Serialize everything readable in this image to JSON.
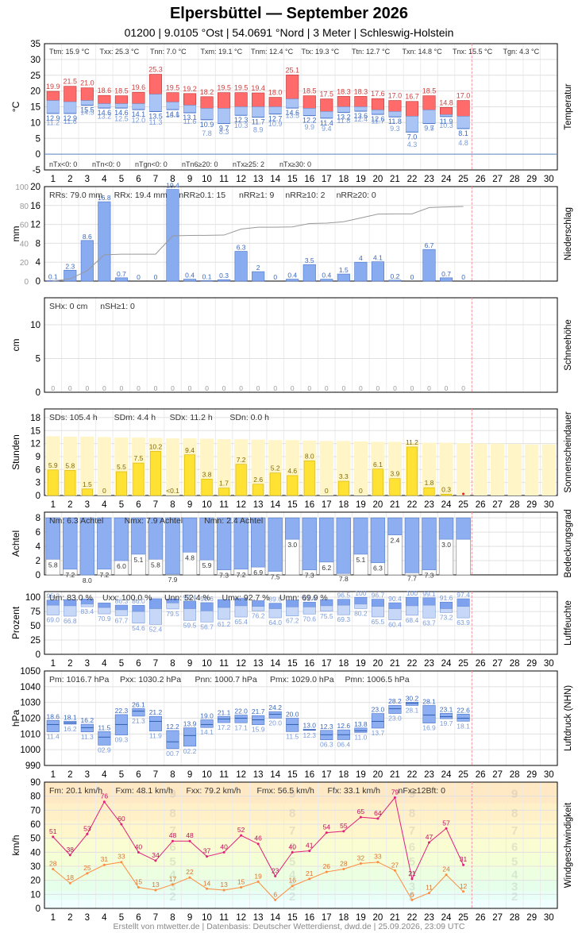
{
  "header": {
    "title": "Elpersbüttel  —  September 2026",
    "subtitle": "01200  |  9.0105 °Ost  |  54.0691 °Nord  |  3 Meter  |  Schleswig-Holstein"
  },
  "footer": "Erstellt von mtwetter.de | Datenbasis: Deutscher Wetterdienst, dwd.de | 25.09.2026, 23:09 UTC",
  "days": [
    1,
    2,
    3,
    4,
    5,
    6,
    7,
    8,
    9,
    10,
    11,
    12,
    13,
    14,
    15,
    16,
    17,
    18,
    19,
    20,
    21,
    22,
    23,
    24,
    25,
    26,
    27,
    28,
    29,
    30
  ],
  "colors": {
    "tmax": "#ff6a6a",
    "tmean": "#a9c4f5",
    "tmin_line": "#6a94e6",
    "precip": "#89abf0",
    "sun": "#ffe233",
    "sun_bg": "#fff5c7",
    "cloud": "#8eaef2",
    "pressure": "#8eaef2",
    "wind_max": "#e0207a",
    "wind_avg": "#ff8c40",
    "grid": "#dddddd",
    "today_line": "#ff9aa0"
  },
  "chart_data": [
    {
      "type": "bar",
      "name": "Temperatur",
      "ylabel": "°C",
      "panel_label": "Temperatur",
      "ylim": [
        -5,
        35
      ],
      "yticks": [
        -5,
        0,
        5,
        10,
        15,
        20,
        25,
        30,
        35
      ],
      "tmax": [
        19.9,
        21.5,
        21.0,
        18.6,
        18.5,
        19.6,
        25.3,
        19.5,
        19.2,
        18.2,
        19.5,
        19.5,
        19.4,
        18.0,
        25.1,
        18.5,
        17.5,
        18.3,
        18.3,
        17.6,
        17.0,
        16.7,
        18.5,
        14.8,
        17.0
      ],
      "tmean": [
        17.0,
        16.6,
        17.0,
        16.0,
        16.0,
        16.0,
        19.0,
        16.5,
        15.5,
        14.5,
        14.5,
        15.0,
        15.0,
        15.0,
        17.5,
        14.5,
        13.5,
        15.0,
        15.0,
        14.0,
        13.5,
        12.0,
        14.0,
        12.5,
        12.0
      ],
      "tmin": [
        12.9,
        12.9,
        15.5,
        14.6,
        14.6,
        14.1,
        13.5,
        14.1,
        13.1,
        10.9,
        9.7,
        12.3,
        11.7,
        12.7,
        14.6,
        12.2,
        11.4,
        13.2,
        13.6,
        12.6,
        11.8,
        7.0,
        9.7,
        11.9,
        8.1
      ],
      "tmin_ground": [
        11.2,
        11.6,
        14.5,
        13.2,
        12.5,
        12.0,
        11.3,
        13.6,
        11.6,
        7.8,
        8.3,
        10.3,
        8.9,
        10.9,
        13.5,
        9.9,
        9.4,
        11.8,
        12.4,
        11.7,
        9.3,
        4.3,
        9.5,
        10.3,
        4.8
      ],
      "stats_top": [
        "Ttm: 15.9 °C",
        "Txx: 25.3 °C",
        "Tnn: 7.0 °C",
        "Txm: 19.1 °C",
        "Tnm: 12.4 °C",
        "Ttx: 19.3 °C",
        "Ttn: 12.7 °C",
        "Txn: 14.8 °C",
        "Tnx: 15.5 °C",
        "Tgn: 4.3 °C"
      ],
      "stats_bottom": [
        "nTx<0: 0",
        "nTn<0: 0",
        "nTgn<0: 0",
        "nTn6≥20: 0",
        "nTx≥25: 2",
        "nTx≥30: 0"
      ]
    },
    {
      "type": "bar",
      "name": "Niederschlag",
      "ylabel": "mm",
      "panel_label": "Niederschlag",
      "ylim": [
        0,
        20
      ],
      "yticks": [
        0,
        4,
        8,
        12,
        16,
        20
      ],
      "yticks_cum": [
        0,
        20,
        40,
        60,
        80,
        100
      ],
      "values": [
        0.1,
        2.3,
        8.6,
        16.8,
        0.7,
        0,
        0,
        19.4,
        0.4,
        0.1,
        0.3,
        6.3,
        2.0,
        0,
        0.4,
        3.5,
        0.4,
        1.5,
        4.0,
        4.1,
        0.2,
        0,
        6.7,
        0.7,
        0
      ],
      "cumulative": [
        0.1,
        2.4,
        11.0,
        27.8,
        28.5,
        28.5,
        28.5,
        47.9,
        48.3,
        48.4,
        48.7,
        55.0,
        57.0,
        57.0,
        57.4,
        60.9,
        61.3,
        62.8,
        66.8,
        70.9,
        71.1,
        71.1,
        77.8,
        78.5,
        79.0
      ],
      "stats": [
        "RRs: 79.0 mm",
        "RRx: 19.4 mm",
        "nRR≥0.1: 15",
        "nRR≥1: 9",
        "nRR≥10: 2",
        "nRR≥20: 0"
      ]
    },
    {
      "type": "bar",
      "name": "Schneehöhe",
      "ylabel": "cm",
      "panel_label": "Schneehöhe",
      "ylim": [
        0,
        14
      ],
      "yticks": [
        0,
        5,
        10
      ],
      "values": [
        0,
        0,
        0,
        0,
        0,
        0,
        0,
        0,
        0,
        0,
        0,
        0,
        0,
        0,
        0,
        0,
        0,
        0,
        0,
        0,
        0,
        0,
        0,
        0,
        0
      ],
      "stats": [
        "SHx: 0 cm",
        "nSH≥1: 0"
      ]
    },
    {
      "type": "bar",
      "name": "Sonnenscheindauer",
      "ylabel": "Stunden",
      "panel_label": "Sonnenscheindauer",
      "ylim": [
        0,
        20
      ],
      "yticks": [
        0,
        3,
        6,
        9,
        12,
        15,
        18
      ],
      "values": [
        5.9,
        5.8,
        1.5,
        0,
        5.5,
        7.5,
        10.2,
        0,
        9.4,
        3.8,
        1.7,
        7.2,
        2.6,
        5.2,
        4.6,
        8.0,
        0,
        3.3,
        0,
        6.1,
        3.9,
        11.2,
        1.8,
        0.3,
        0
      ],
      "labels": [
        "5.9",
        "5.8",
        "1.5",
        "0",
        "5.5",
        "7.5",
        "10.2",
        "<0.1",
        "9.4",
        "3.8",
        "1.7",
        "7.2",
        "2.6",
        "5.2",
        "4.6",
        "8.0",
        "0",
        "3.3",
        "0",
        "6.1",
        "3.9",
        "11.2",
        "1.8",
        "0.3",
        ""
      ],
      "possible": [
        13.7,
        13.6,
        13.6,
        13.5,
        13.4,
        13.4,
        13.3,
        13.2,
        13.2,
        13.1,
        13.0,
        13.0,
        12.9,
        12.8,
        12.8,
        12.7,
        12.6,
        12.6,
        12.5,
        12.4,
        12.4,
        12.3,
        12.2,
        12.2,
        12.1,
        12.0,
        12.0,
        11.9,
        11.8,
        11.8
      ],
      "stats": [
        "SDs: 105.4 h",
        "SDm: 4.4 h",
        "SDx: 11.2 h",
        "SDn: 0.0 h"
      ]
    },
    {
      "type": "bar",
      "name": "Bedeckungsgrad",
      "ylabel": "Achtel",
      "panel_label": "Bedeckungsgrad",
      "ylim": [
        0,
        8.8
      ],
      "yticks": [
        0,
        2,
        4,
        6,
        8
      ],
      "values": [
        5.8,
        7.2,
        8.0,
        7.2,
        6.0,
        5.1,
        5.8,
        7.9,
        4.8,
        5.9,
        7.3,
        7.2,
        6.9,
        7.5,
        3.0,
        7.3,
        6.2,
        7.8,
        5.1,
        6.3,
        2.4,
        7.7,
        7.3,
        3.0,
        3.0
      ],
      "value_labels": [
        "5.8",
        "7.2",
        "8.0",
        "7.2",
        "6.0",
        "5.1",
        "5.8",
        "7.9",
        "4.8",
        "5.9",
        "7.3",
        "7.2",
        "6.9",
        "7.5",
        "3.0",
        "7.3",
        "6.2",
        "7.8",
        "5.1",
        "6.3",
        "2.4",
        "7.7",
        "7.3",
        "3.0",
        ""
      ],
      "stats": [
        "Nm: 6.3 Achtel",
        "Nmx: 7.9 Achtel",
        "Nmn: 2.4 Achtel"
      ]
    },
    {
      "type": "bar",
      "name": "Luftfeuchte",
      "ylabel": "Prozent",
      "panel_label": "Luftfeuchte",
      "ylim": [
        0,
        110
      ],
      "yticks": [
        0,
        25,
        50,
        75,
        100
      ],
      "umax": [
        95.2,
        96.0,
        97.0,
        90.0,
        86.3,
        86.0,
        97.5,
        97.0,
        93.4,
        90.6,
        96.0,
        98.0,
        94.0,
        89.6,
        95.0,
        91.4,
        96.0,
        96.5,
        100,
        96.7,
        90.4,
        100,
        99.1,
        91.6,
        97.4
      ],
      "umean": [
        86.0,
        85.0,
        88.0,
        82.0,
        78.0,
        75.0,
        80.0,
        90.0,
        80.0,
        76.0,
        82.0,
        85.0,
        84.0,
        80.0,
        83.0,
        83.0,
        85.0,
        86.0,
        88.0,
        84.0,
        80.0,
        85.0,
        86.0,
        80.0,
        84.0
      ],
      "umin": [
        69.0,
        66.8,
        83.4,
        70.9,
        67.7,
        54.6,
        52.4,
        79.5,
        59.5,
        56.7,
        61.2,
        65.4,
        76.2,
        64.0,
        67.2,
        70.6,
        75.5,
        69.3,
        80.2,
        65.5,
        60.4,
        68.4,
        63.7,
        73.2,
        63.9
      ],
      "umax_labels": [
        "95.2",
        "",
        "",
        "",
        "86.3",
        "86.0",
        "",
        "",
        "93.4",
        "90.6",
        "",
        "",
        "",
        "89.6",
        "",
        "91.4",
        "",
        "96.5",
        "100",
        "96.7",
        "90.4",
        "100",
        "99.1",
        "91.6",
        "97.4"
      ],
      "stats": [
        "Um: 83.0 %",
        "Uxx: 100.0 %",
        "Unn: 52.4 %",
        "Umx: 92.7 %",
        "Umn: 69.9 %"
      ]
    },
    {
      "type": "bar",
      "name": "Luftdruck (NHN)",
      "ylabel": "hPa",
      "panel_label": "Luftdruck (NHN)",
      "ylim": [
        990,
        1050
      ],
      "yticks": [
        990,
        1000,
        1010,
        1020,
        1030,
        1040,
        1050
      ],
      "pmax": [
        1018.6,
        1018.1,
        1016.2,
        1011.5,
        1022.3,
        1026.1,
        1021.2,
        1012.2,
        1013.9,
        1019.0,
        1021.1,
        1022.0,
        1021.7,
        1024.2,
        1020.0,
        1013.0,
        1012.3,
        1012.6,
        1013.8,
        1023.0,
        1028.2,
        1030.2,
        1028.1,
        1023.1,
        1022.6
      ],
      "pmean": [
        1016.0,
        1017.0,
        1014.0,
        1008.0,
        1016.0,
        1024.5,
        1018.0,
        1005.0,
        1009.0,
        1016.0,
        1019.5,
        1020.0,
        1019.0,
        1022.5,
        1016.0,
        1012.5,
        1009.5,
        1009.5,
        1012.0,
        1018.0,
        1026.0,
        1029.5,
        1022.0,
        1021.0,
        1020.0
      ],
      "pmin": [
        1011.4,
        1016.2,
        1011.3,
        1002.9,
        1009.3,
        1021.3,
        1011.9,
        1000.7,
        1002.2,
        1014.1,
        1017.2,
        1017.1,
        1015.9,
        1020.0,
        1011.5,
        1012.3,
        1006.3,
        1006.4,
        1011.0,
        1013.7,
        1023.0,
        1028.1,
        1016.9,
        1019.7,
        1018.1
      ],
      "pmin_labels": [
        "11.4",
        "16.2",
        "11.3",
        "02.9",
        "09.3",
        "21.3",
        "11.9",
        "00.7",
        "02.2",
        "14.1",
        "17.2",
        "17.1",
        "15.9",
        "20.0",
        "11.5",
        "12.3",
        "06.3",
        "06.4",
        "11.0",
        "13.7",
        "23.0",
        "28.1",
        "16.9",
        "19.7",
        "18.1"
      ],
      "pmax_labels": [
        "18.6",
        "18.1",
        "16.2",
        "11.5",
        "22.3",
        "26.1",
        "21.2",
        "12.2",
        "13.9",
        "19.0",
        "21.1",
        "22.0",
        "21.7",
        "24.2",
        "20.0",
        "13.0",
        "12.3",
        "12.6",
        "13.8",
        "23.0",
        "28.2",
        "30.2",
        "28.1",
        "23.1",
        "22.6"
      ],
      "stats": [
        "Pm: 1016.7 hPa",
        "Pxx: 1030.2 hPa",
        "Pnn: 1000.7 hPa",
        "Pmx: 1029.0 hPa",
        "Pmn: 1006.5 hPa"
      ]
    },
    {
      "type": "line",
      "name": "Windgeschwindigkeit",
      "ylabel": "km/h",
      "panel_label": "Windgeschwindigkeit",
      "ylim": [
        0,
        90
      ],
      "yticks": [
        0,
        10,
        20,
        30,
        40,
        50,
        60,
        70,
        80,
        90
      ],
      "gust": [
        51,
        38,
        53,
        76,
        60,
        40,
        34,
        48,
        48,
        37,
        40,
        52,
        46,
        23,
        40,
        41,
        54,
        55,
        65,
        64,
        79,
        21,
        47,
        57,
        31
      ],
      "mean": [
        28,
        18,
        25,
        31,
        33,
        15,
        13,
        17,
        22,
        14,
        13,
        15,
        19,
        6,
        16,
        21,
        26,
        28,
        32,
        33,
        27,
        6,
        11,
        24,
        12
      ],
      "bft_labels": [
        "2",
        "3",
        "4",
        "5",
        "6",
        "7",
        "8",
        "9"
      ],
      "stats": [
        "Fm: 20.1 km/h",
        "Fxm: 48.1 km/h",
        "Fxx: 79.2 km/h",
        "Fmx: 56.5 km/h",
        "Ffx: 33.1 km/h",
        "nFx≥12Bft: 0"
      ]
    }
  ]
}
